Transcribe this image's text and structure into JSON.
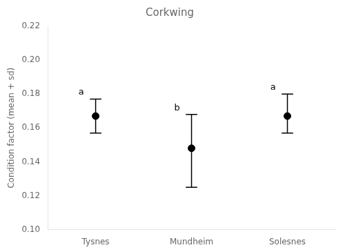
{
  "chart_data": {
    "type": "errorbar",
    "title": "Corkwing",
    "ylabel": "Condition factor (mean + sd)",
    "categories": [
      "Tysnes",
      "Mundheim",
      "Solesnes"
    ],
    "values": [
      0.167,
      0.148,
      0.167
    ],
    "sd_upper": [
      0.01,
      0.02,
      0.013
    ],
    "sd_lower": [
      0.01,
      0.023,
      0.01
    ],
    "annotations": [
      "a",
      "b",
      "a"
    ],
    "color": "#000000",
    "ylim": [
      0.1,
      0.22
    ],
    "yticks": [
      {
        "value": 0.1,
        "label": "0.10"
      },
      0.12,
      0.14,
      0.16,
      0.18,
      {
        "value": 0.2,
        "label": "0.20"
      },
      0.22
    ],
    "grid": false
  }
}
